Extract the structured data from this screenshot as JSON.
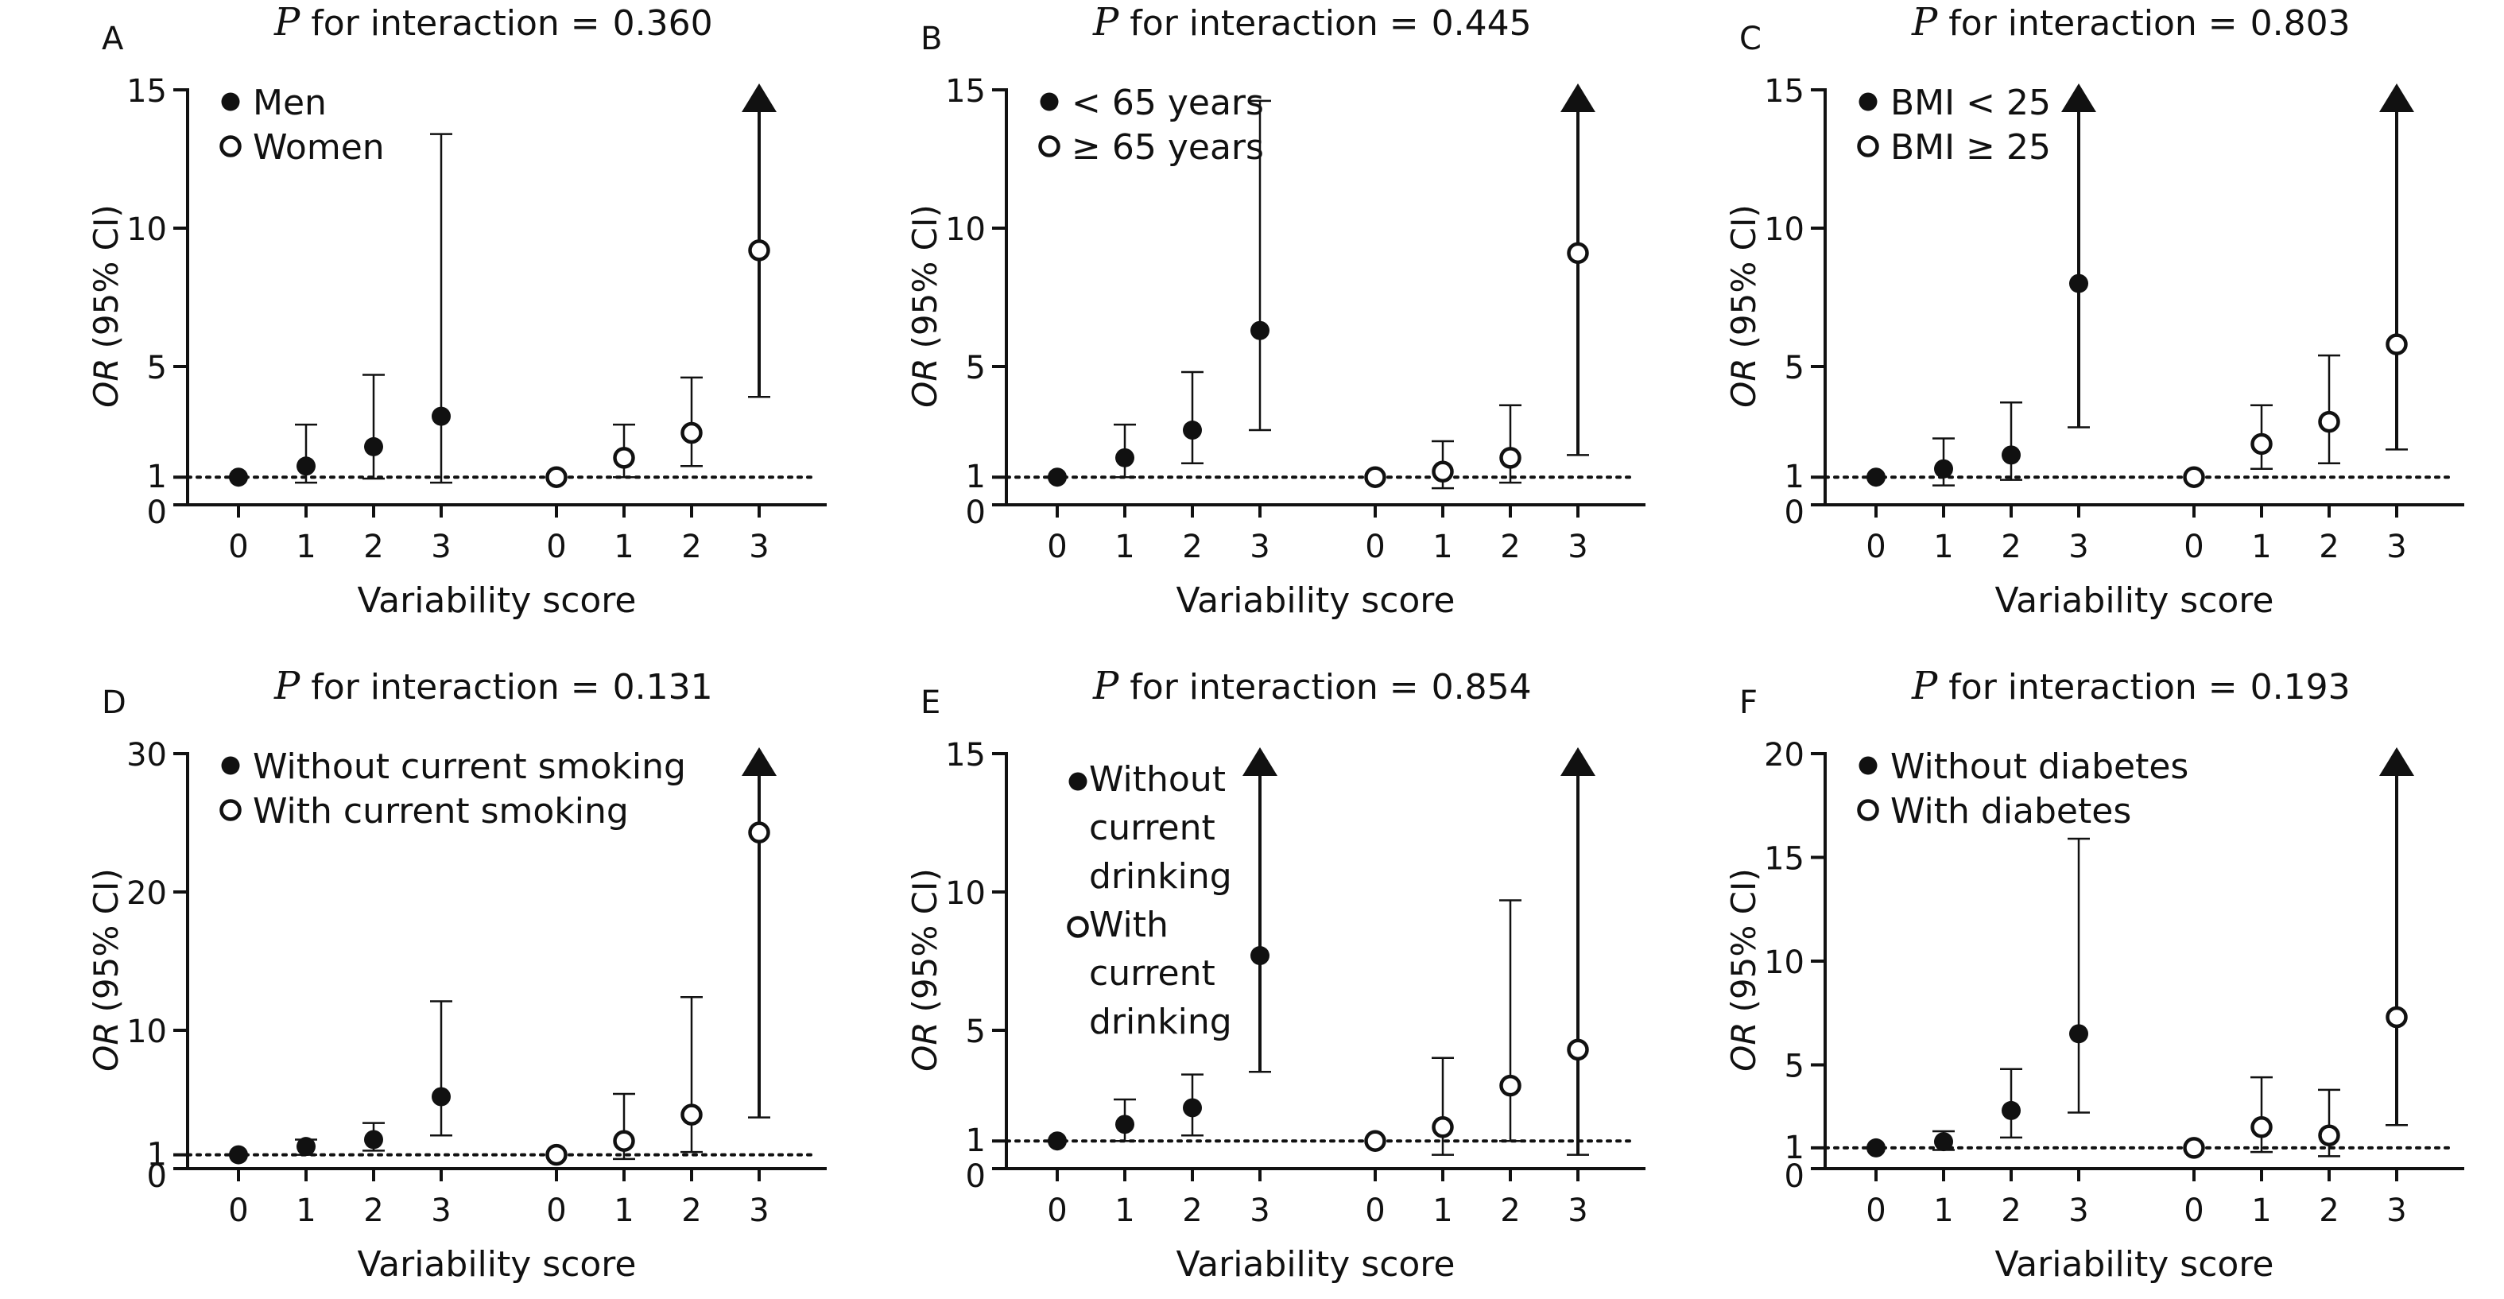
{
  "chart_data": [
    {
      "panel": "A",
      "type": "scatter",
      "title_prefix": "P",
      "title_text": "for interaction =",
      "p_value": "0.360",
      "ylabel_italic": "OR",
      "ylabel_rest": "(95% CI)",
      "xlabel": "Variability score",
      "ylim": [
        0,
        15
      ],
      "yticks": [
        0,
        1,
        5,
        10,
        15
      ],
      "reference_line": 1,
      "legend": [
        {
          "label": "Men",
          "marker": "filled"
        },
        {
          "label": "Women",
          "marker": "open"
        }
      ],
      "series": [
        {
          "name": "Men",
          "marker": "filled",
          "points": [
            {
              "x": "0",
              "y": 1.0,
              "lo": null,
              "hi": null,
              "arrow": false
            },
            {
              "x": "1",
              "y": 1.4,
              "lo": 0.8,
              "hi": 2.9,
              "arrow": false
            },
            {
              "x": "2",
              "y": 2.1,
              "lo": 0.95,
              "hi": 4.7,
              "arrow": false
            },
            {
              "x": "3",
              "y": 3.2,
              "lo": 0.8,
              "hi": 13.4,
              "arrow": false
            }
          ]
        },
        {
          "name": "Women",
          "marker": "open",
          "points": [
            {
              "x": "0",
              "y": 1.0,
              "lo": null,
              "hi": null,
              "arrow": false
            },
            {
              "x": "1",
              "y": 1.7,
              "lo": 1.0,
              "hi": 2.9,
              "arrow": false
            },
            {
              "x": "2",
              "y": 2.6,
              "lo": 1.4,
              "hi": 4.6,
              "arrow": false
            },
            {
              "x": "3",
              "y": 9.2,
              "lo": 3.9,
              "hi": 15,
              "arrow": true
            }
          ]
        }
      ]
    },
    {
      "panel": "B",
      "type": "scatter",
      "title_prefix": "P",
      "title_text": "for interaction =",
      "p_value": "0.445",
      "ylabel_italic": "OR",
      "ylabel_rest": "(95% CI)",
      "xlabel": "Variability score",
      "ylim": [
        0,
        15
      ],
      "yticks": [
        0,
        1,
        5,
        10,
        15
      ],
      "reference_line": 1,
      "legend": [
        {
          "label": "< 65 years",
          "marker": "filled"
        },
        {
          "label": "≥ 65 years",
          "marker": "open"
        }
      ],
      "series": [
        {
          "name": "< 65 years",
          "marker": "filled",
          "points": [
            {
              "x": "0",
              "y": 1.0,
              "lo": null,
              "hi": null,
              "arrow": false
            },
            {
              "x": "1",
              "y": 1.7,
              "lo": 1.0,
              "hi": 2.9,
              "arrow": false
            },
            {
              "x": "2",
              "y": 2.7,
              "lo": 1.5,
              "hi": 4.8,
              "arrow": false
            },
            {
              "x": "3",
              "y": 6.3,
              "lo": 2.7,
              "hi": 14.6,
              "arrow": false
            }
          ]
        },
        {
          "name": "≥ 65 years",
          "marker": "open",
          "points": [
            {
              "x": "0",
              "y": 1.0,
              "lo": null,
              "hi": null,
              "arrow": false
            },
            {
              "x": "1",
              "y": 1.2,
              "lo": 0.6,
              "hi": 2.3,
              "arrow": false
            },
            {
              "x": "2",
              "y": 1.7,
              "lo": 0.8,
              "hi": 3.6,
              "arrow": false
            },
            {
              "x": "3",
              "y": 9.1,
              "lo": 1.8,
              "hi": 15,
              "arrow": true
            }
          ]
        }
      ]
    },
    {
      "panel": "C",
      "type": "scatter",
      "title_prefix": "P",
      "title_text": "for interaction =",
      "p_value": "0.803",
      "ylabel_italic": "OR",
      "ylabel_rest": "(95% CI)",
      "xlabel": "Variability score",
      "ylim": [
        0,
        15
      ],
      "yticks": [
        0,
        1,
        5,
        10,
        15
      ],
      "reference_line": 1,
      "legend": [
        {
          "label": "BMI < 25",
          "marker": "filled"
        },
        {
          "label": "BMI ≥ 25",
          "marker": "open"
        }
      ],
      "series": [
        {
          "name": "BMI < 25",
          "marker": "filled",
          "points": [
            {
              "x": "0",
              "y": 1.0,
              "lo": null,
              "hi": null,
              "arrow": false
            },
            {
              "x": "1",
              "y": 1.3,
              "lo": 0.7,
              "hi": 2.4,
              "arrow": false
            },
            {
              "x": "2",
              "y": 1.8,
              "lo": 0.9,
              "hi": 3.7,
              "arrow": false
            },
            {
              "x": "3",
              "y": 8.0,
              "lo": 2.8,
              "hi": 15,
              "arrow": true
            }
          ]
        },
        {
          "name": "BMI ≥ 25",
          "marker": "open",
          "points": [
            {
              "x": "0",
              "y": 1.0,
              "lo": null,
              "hi": null,
              "arrow": false
            },
            {
              "x": "1",
              "y": 2.2,
              "lo": 1.3,
              "hi": 3.6,
              "arrow": false
            },
            {
              "x": "2",
              "y": 3.0,
              "lo": 1.5,
              "hi": 5.4,
              "arrow": false
            },
            {
              "x": "3",
              "y": 5.8,
              "lo": 2.0,
              "hi": 15,
              "arrow": true
            }
          ]
        }
      ]
    },
    {
      "panel": "D",
      "type": "scatter",
      "title_prefix": "P",
      "title_text": "for interaction =",
      "p_value": "0.131",
      "ylabel_italic": "OR",
      "ylabel_rest": "(95% CI)",
      "xlabel": "Variability score",
      "ylim": [
        0,
        30
      ],
      "yticks": [
        0,
        1,
        10,
        20,
        30
      ],
      "reference_line": 1,
      "legend": [
        {
          "label": "Without current smoking",
          "marker": "filled"
        },
        {
          "label": "With current smoking",
          "marker": "open"
        }
      ],
      "series": [
        {
          "name": "Without current smoking",
          "marker": "filled",
          "points": [
            {
              "x": "0",
              "y": 1.0,
              "lo": null,
              "hi": null,
              "arrow": false
            },
            {
              "x": "1",
              "y": 1.6,
              "lo": 1.0,
              "hi": 2.1,
              "arrow": false
            },
            {
              "x": "2",
              "y": 2.1,
              "lo": 1.3,
              "hi": 3.3,
              "arrow": false
            },
            {
              "x": "3",
              "y": 5.2,
              "lo": 2.4,
              "hi": 12.1,
              "arrow": false
            }
          ]
        },
        {
          "name": "With current smoking",
          "marker": "open",
          "points": [
            {
              "x": "0",
              "y": 1.0,
              "lo": null,
              "hi": null,
              "arrow": false
            },
            {
              "x": "1",
              "y": 2.0,
              "lo": 0.7,
              "hi": 5.4,
              "arrow": false
            },
            {
              "x": "2",
              "y": 3.9,
              "lo": 1.2,
              "hi": 12.4,
              "arrow": false
            },
            {
              "x": "3",
              "y": 24.3,
              "lo": 3.7,
              "hi": 30,
              "arrow": true
            }
          ]
        }
      ]
    },
    {
      "panel": "E",
      "type": "scatter",
      "title_prefix": "P",
      "title_text": "for interaction =",
      "p_value": "0.854",
      "ylabel_italic": "OR",
      "ylabel_rest": "(95% CI)",
      "xlabel": "Variability score",
      "ylim": [
        0,
        15
      ],
      "yticks": [
        0,
        1,
        5,
        10,
        15
      ],
      "reference_line": 1,
      "legend": [
        {
          "label": "Without current drinking",
          "marker": "filled"
        },
        {
          "label": "With current drinking",
          "marker": "open"
        }
      ],
      "legend_lines": [
        [
          "Without",
          "current",
          "drinking"
        ],
        [
          "With",
          "current",
          "drinking"
        ]
      ],
      "series": [
        {
          "name": "Without current drinking",
          "marker": "filled",
          "points": [
            {
              "x": "0",
              "y": 1.0,
              "lo": null,
              "hi": null,
              "arrow": false
            },
            {
              "x": "1",
              "y": 1.6,
              "lo": 1.0,
              "hi": 2.5,
              "arrow": false
            },
            {
              "x": "2",
              "y": 2.2,
              "lo": 1.2,
              "hi": 3.4,
              "arrow": false
            },
            {
              "x": "3",
              "y": 7.7,
              "lo": 3.5,
              "hi": 15,
              "arrow": true
            }
          ]
        },
        {
          "name": "With current drinking",
          "marker": "open",
          "points": [
            {
              "x": "0",
              "y": 1.0,
              "lo": null,
              "hi": null,
              "arrow": false
            },
            {
              "x": "1",
              "y": 1.5,
              "lo": 0.5,
              "hi": 4.0,
              "arrow": false
            },
            {
              "x": "2",
              "y": 3.0,
              "lo": 1.0,
              "hi": 9.7,
              "arrow": false
            },
            {
              "x": "3",
              "y": 4.3,
              "lo": 0.5,
              "hi": 15,
              "arrow": true
            }
          ]
        }
      ]
    },
    {
      "panel": "F",
      "type": "scatter",
      "title_prefix": "P",
      "title_text": "for interaction =",
      "p_value": "0.193",
      "ylabel_italic": "OR",
      "ylabel_rest": "(95% CI)",
      "xlabel": "Variability score",
      "ylim": [
        0,
        20
      ],
      "yticks": [
        0,
        1,
        5,
        10,
        15,
        20
      ],
      "reference_line": 1,
      "legend": [
        {
          "label": "Without diabetes",
          "marker": "filled"
        },
        {
          "label": "With diabetes",
          "marker": "open"
        }
      ],
      "series": [
        {
          "name": "Without diabetes",
          "marker": "filled",
          "points": [
            {
              "x": "0",
              "y": 1.0,
              "lo": null,
              "hi": null,
              "arrow": false
            },
            {
              "x": "1",
              "y": 1.3,
              "lo": 0.9,
              "hi": 1.8,
              "arrow": false
            },
            {
              "x": "2",
              "y": 2.8,
              "lo": 1.5,
              "hi": 4.8,
              "arrow": false
            },
            {
              "x": "3",
              "y": 6.5,
              "lo": 2.7,
              "hi": 15.9,
              "arrow": false
            }
          ]
        },
        {
          "name": "With diabetes",
          "marker": "open",
          "points": [
            {
              "x": "0",
              "y": 1.0,
              "lo": null,
              "hi": null,
              "arrow": false
            },
            {
              "x": "1",
              "y": 2.0,
              "lo": 0.8,
              "hi": 4.4,
              "arrow": false
            },
            {
              "x": "2",
              "y": 1.6,
              "lo": 0.6,
              "hi": 3.8,
              "arrow": false
            },
            {
              "x": "3",
              "y": 7.3,
              "lo": 2.1,
              "hi": 20,
              "arrow": true
            }
          ]
        }
      ]
    }
  ],
  "colors": {
    "ink": "#111111",
    "background": "#ffffff"
  }
}
